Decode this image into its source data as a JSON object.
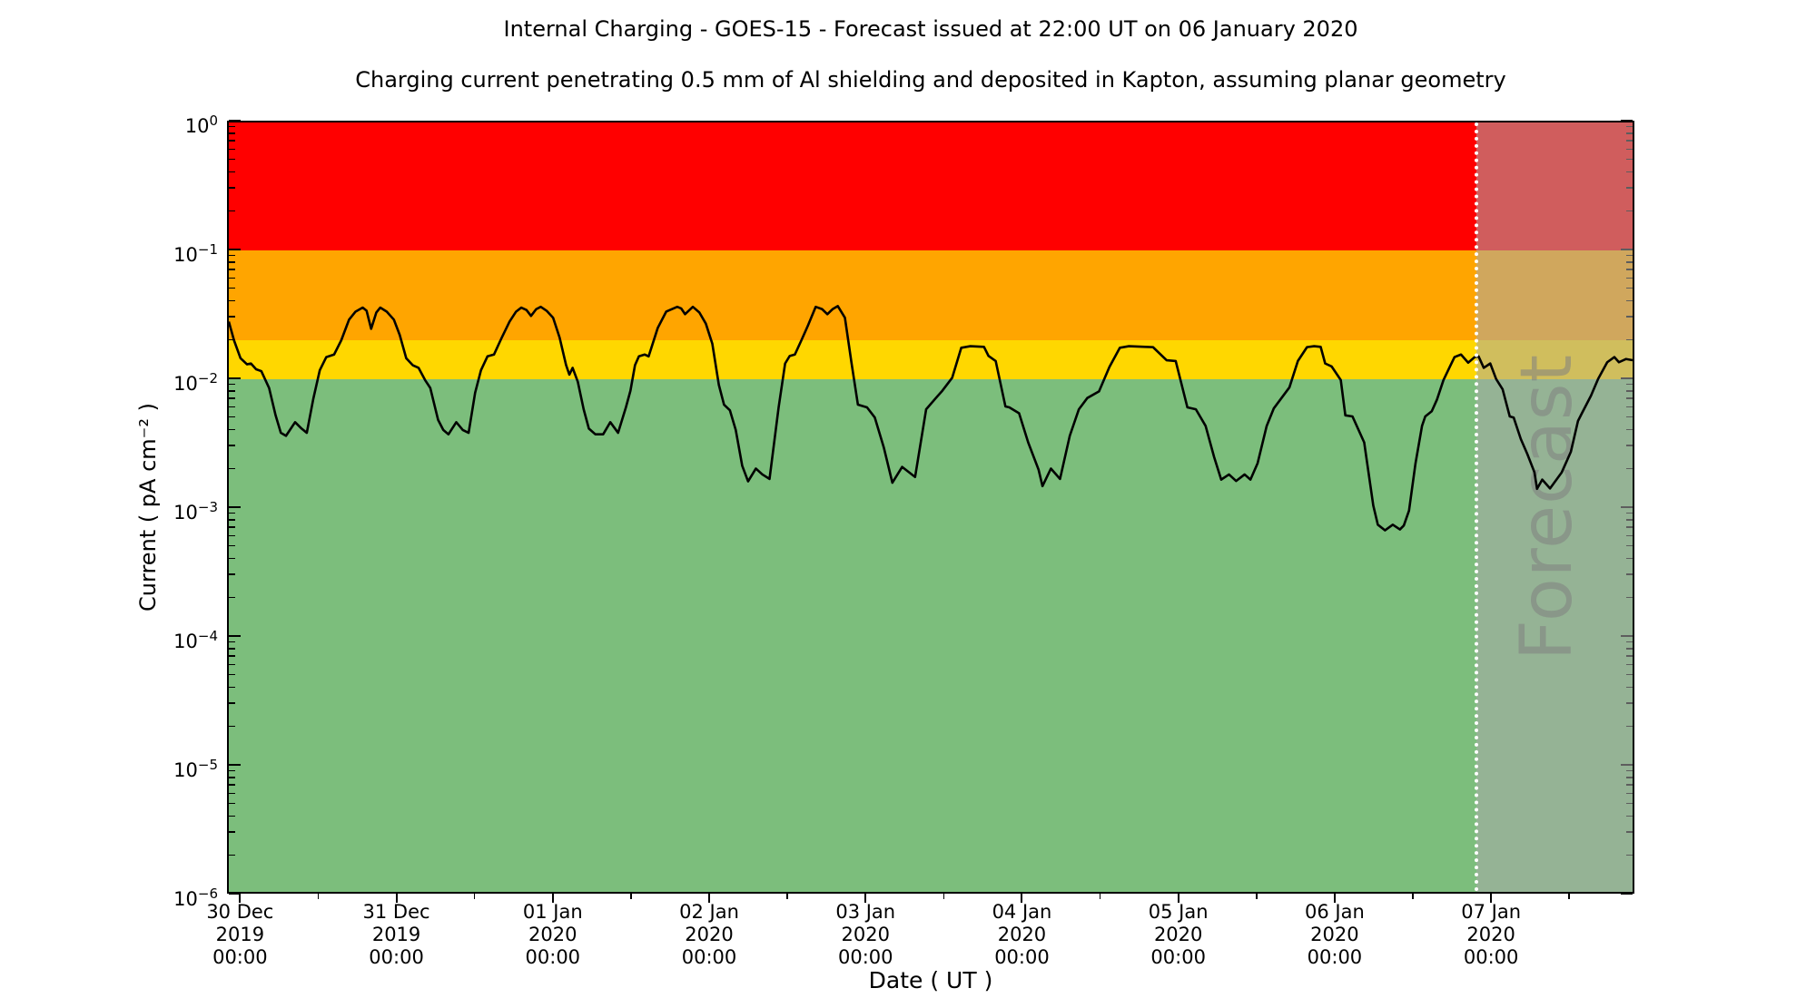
{
  "chart_data": {
    "type": "line",
    "title": "Internal Charging - GOES-15 - Forecast issued at 22:00 UT on 06 January 2020",
    "subtitle": "Charging current penetrating 0.5 mm of Al shielding and deposited in Kapton, assuming planar geometry",
    "xlabel": "Date ( UT )",
    "ylabel": "Current ( pA cm⁻² )",
    "y_scale": "log",
    "ylim": [
      1e-06,
      1
    ],
    "y_tick_exponents": [
      0,
      -1,
      -2,
      -3,
      -4,
      -5,
      -6
    ],
    "x_total_hours": 216,
    "x_major_ticks": [
      {
        "t": 2,
        "lines": [
          "30 Dec",
          "2019",
          "00:00"
        ]
      },
      {
        "t": 26,
        "lines": [
          "31 Dec",
          "2019",
          "00:00"
        ]
      },
      {
        "t": 50,
        "lines": [
          "01 Jan",
          "2020",
          "00:00"
        ]
      },
      {
        "t": 74,
        "lines": [
          "02 Jan",
          "2020",
          "00:00"
        ]
      },
      {
        "t": 98,
        "lines": [
          "03 Jan",
          "2020",
          "00:00"
        ]
      },
      {
        "t": 122,
        "lines": [
          "04 Jan",
          "2020",
          "00:00"
        ]
      },
      {
        "t": 146,
        "lines": [
          "05 Jan",
          "2020",
          "00:00"
        ]
      },
      {
        "t": 170,
        "lines": [
          "06 Jan",
          "2020",
          "00:00"
        ]
      },
      {
        "t": 194,
        "lines": [
          "07 Jan",
          "2020",
          "00:00"
        ]
      }
    ],
    "x_minor_ticks": [
      14,
      38,
      62,
      86,
      110,
      134,
      158,
      182,
      206
    ],
    "grid": false,
    "zones": [
      {
        "name": "red-zone",
        "color": "#ff0000",
        "from": 0.1,
        "to": 1.0
      },
      {
        "name": "orange-zone",
        "color": "#ffa500",
        "from": 0.02,
        "to": 0.1
      },
      {
        "name": "yellow-zone",
        "color": "#ffd700",
        "from": 0.01,
        "to": 0.02
      },
      {
        "name": "green-zone",
        "color": "#7cbe7c",
        "from": 1e-06,
        "to": 0.01
      }
    ],
    "forecast": {
      "watermark": "Forecast",
      "start_hours": 192,
      "overlay_color": "rgba(169,169,169,0.55)",
      "divider_color": "#ffffff",
      "watermark_color": "rgba(128,128,128,0.55)"
    },
    "series": [
      {
        "name": "charging-current",
        "color": "#000000",
        "points": [
          [
            0,
            0.028
          ],
          [
            0.8,
            0.02
          ],
          [
            1.8,
            0.0145
          ],
          [
            2.8,
            0.013
          ],
          [
            3.4,
            0.0132
          ],
          [
            4.2,
            0.0119
          ],
          [
            5,
            0.0115
          ],
          [
            6.2,
            0.0085
          ],
          [
            7.2,
            0.0052
          ],
          [
            8,
            0.0038
          ],
          [
            8.8,
            0.0036
          ],
          [
            10.2,
            0.0046
          ],
          [
            11.2,
            0.0041
          ],
          [
            12,
            0.0038
          ],
          [
            13,
            0.007
          ],
          [
            14,
            0.0117
          ],
          [
            15,
            0.0148
          ],
          [
            16.2,
            0.0155
          ],
          [
            17.3,
            0.02
          ],
          [
            18.5,
            0.029
          ],
          [
            19.5,
            0.0335
          ],
          [
            20.6,
            0.036
          ],
          [
            21.2,
            0.034
          ],
          [
            21.9,
            0.0246
          ],
          [
            22.7,
            0.033
          ],
          [
            23.3,
            0.036
          ],
          [
            24.3,
            0.0335
          ],
          [
            25.4,
            0.029
          ],
          [
            26.3,
            0.022
          ],
          [
            27.3,
            0.0145
          ],
          [
            28.3,
            0.0128
          ],
          [
            29.2,
            0.0122
          ],
          [
            30.2,
            0.0098
          ],
          [
            31,
            0.0085
          ],
          [
            32.2,
            0.0048
          ],
          [
            33,
            0.004
          ],
          [
            33.8,
            0.0037
          ],
          [
            35,
            0.0046
          ],
          [
            36,
            0.004
          ],
          [
            36.9,
            0.0038
          ],
          [
            37.9,
            0.0078
          ],
          [
            38.8,
            0.0117
          ],
          [
            39.8,
            0.015
          ],
          [
            40.8,
            0.0155
          ],
          [
            42,
            0.021
          ],
          [
            43.2,
            0.028
          ],
          [
            44.2,
            0.0335
          ],
          [
            45,
            0.036
          ],
          [
            45.8,
            0.0345
          ],
          [
            46.5,
            0.031
          ],
          [
            47.3,
            0.035
          ],
          [
            48,
            0.0365
          ],
          [
            48.9,
            0.034
          ],
          [
            49.9,
            0.03
          ],
          [
            50.9,
            0.021
          ],
          [
            51.9,
            0.0128
          ],
          [
            52.4,
            0.0108
          ],
          [
            52.9,
            0.0122
          ],
          [
            53.7,
            0.0095
          ],
          [
            54.6,
            0.0058
          ],
          [
            55.4,
            0.0041
          ],
          [
            56.4,
            0.0037
          ],
          [
            57.6,
            0.0037
          ],
          [
            58.7,
            0.0046
          ],
          [
            59.9,
            0.0038
          ],
          [
            61.1,
            0.006
          ],
          [
            61.8,
            0.0081
          ],
          [
            62.5,
            0.0128
          ],
          [
            63.1,
            0.015
          ],
          [
            64,
            0.0155
          ],
          [
            64.6,
            0.015
          ],
          [
            66,
            0.025
          ],
          [
            67.3,
            0.0335
          ],
          [
            69,
            0.0365
          ],
          [
            69.6,
            0.0355
          ],
          [
            70.2,
            0.032
          ],
          [
            71.4,
            0.0365
          ],
          [
            72.4,
            0.033
          ],
          [
            73.4,
            0.027
          ],
          [
            74.4,
            0.0188
          ],
          [
            75.4,
            0.009
          ],
          [
            76.2,
            0.0063
          ],
          [
            77.1,
            0.0057
          ],
          [
            78,
            0.004
          ],
          [
            79,
            0.0021
          ],
          [
            79.9,
            0.00159
          ],
          [
            81.1,
            0.002
          ],
          [
            82.1,
            0.0018
          ],
          [
            83.2,
            0.00166
          ],
          [
            84.6,
            0.006
          ],
          [
            85.6,
            0.0132
          ],
          [
            86.3,
            0.0151
          ],
          [
            87.1,
            0.0155
          ],
          [
            88.1,
            0.02
          ],
          [
            89.1,
            0.026
          ],
          [
            90.3,
            0.0365
          ],
          [
            91.3,
            0.035
          ],
          [
            92.1,
            0.032
          ],
          [
            92.9,
            0.035
          ],
          [
            93.7,
            0.037
          ],
          [
            94.8,
            0.03
          ],
          [
            95.8,
            0.0135
          ],
          [
            96.8,
            0.0063
          ],
          [
            98.2,
            0.006
          ],
          [
            99.4,
            0.005
          ],
          [
            100.8,
            0.0029
          ],
          [
            102.1,
            0.00155
          ],
          [
            103.6,
            0.00206
          ],
          [
            105.6,
            0.00172
          ],
          [
            107.3,
            0.0058
          ],
          [
            108.8,
            0.0071
          ],
          [
            109.8,
            0.0081
          ],
          [
            111.3,
            0.0102
          ],
          [
            112.7,
            0.0175
          ],
          [
            114.1,
            0.018
          ],
          [
            116.2,
            0.0178
          ],
          [
            116.9,
            0.0151
          ],
          [
            118,
            0.0138
          ],
          [
            119.5,
            0.0061
          ],
          [
            120.1,
            0.006
          ],
          [
            121.6,
            0.0054
          ],
          [
            123,
            0.0032
          ],
          [
            124.6,
            0.00196
          ],
          [
            125.2,
            0.00146
          ],
          [
            126.5,
            0.002
          ],
          [
            127.9,
            0.00166
          ],
          [
            129.4,
            0.0036
          ],
          [
            130.8,
            0.0058
          ],
          [
            132.1,
            0.0071
          ],
          [
            133.9,
            0.008
          ],
          [
            135.5,
            0.0124
          ],
          [
            137.1,
            0.0175
          ],
          [
            138.5,
            0.018
          ],
          [
            141,
            0.0178
          ],
          [
            142.2,
            0.0177
          ],
          [
            144.3,
            0.014
          ],
          [
            145.7,
            0.0138
          ],
          [
            147.5,
            0.006
          ],
          [
            148.8,
            0.0058
          ],
          [
            150.3,
            0.0043
          ],
          [
            151.6,
            0.00247
          ],
          [
            152.7,
            0.00164
          ],
          [
            153.9,
            0.0018
          ],
          [
            155,
            0.0016
          ],
          [
            156.3,
            0.0018
          ],
          [
            157.2,
            0.00164
          ],
          [
            158.3,
            0.0022
          ],
          [
            159.7,
            0.0043
          ],
          [
            160.8,
            0.0059
          ],
          [
            161.8,
            0.0069
          ],
          [
            163.2,
            0.0086
          ],
          [
            164.5,
            0.0138
          ],
          [
            165.9,
            0.0177
          ],
          [
            167,
            0.018
          ],
          [
            168,
            0.0178
          ],
          [
            168.7,
            0.0132
          ],
          [
            169.7,
            0.0125
          ],
          [
            171.1,
            0.0098
          ],
          [
            171.8,
            0.0052
          ],
          [
            172.9,
            0.0051
          ],
          [
            173.3,
            0.0046
          ],
          [
            174.7,
            0.0032
          ],
          [
            176.1,
            0.00103
          ],
          [
            176.8,
            0.00073
          ],
          [
            177.9,
            0.00066
          ],
          [
            179.1,
            0.00073
          ],
          [
            180.2,
            0.00067
          ],
          [
            180.8,
            0.00072
          ],
          [
            181.6,
            0.00094
          ],
          [
            182.6,
            0.0022
          ],
          [
            183.6,
            0.0043
          ],
          [
            184.1,
            0.0051
          ],
          [
            185.1,
            0.0056
          ],
          [
            185.9,
            0.0069
          ],
          [
            186.9,
            0.0098
          ],
          [
            187.9,
            0.0125
          ],
          [
            188.6,
            0.0148
          ],
          [
            189.6,
            0.0155
          ],
          [
            190.7,
            0.0134
          ],
          [
            191.7,
            0.0148
          ],
          [
            192.3,
            0.015
          ],
          [
            193.1,
            0.0122
          ],
          [
            194.1,
            0.0132
          ],
          [
            195,
            0.01
          ],
          [
            196,
            0.0083
          ],
          [
            197.1,
            0.0051
          ],
          [
            197.7,
            0.005
          ],
          [
            198.8,
            0.0034
          ],
          [
            199.8,
            0.0026
          ],
          [
            200.9,
            0.00187
          ],
          [
            201.3,
            0.00139
          ],
          [
            202.1,
            0.00164
          ],
          [
            203.3,
            0.0014
          ],
          [
            205.1,
            0.00187
          ],
          [
            206.5,
            0.0027
          ],
          [
            207.6,
            0.0047
          ],
          [
            208.2,
            0.0054
          ],
          [
            209.6,
            0.0074
          ],
          [
            210.7,
            0.01
          ],
          [
            212.1,
            0.0135
          ],
          [
            213.2,
            0.0148
          ],
          [
            213.9,
            0.0135
          ],
          [
            215,
            0.0143
          ],
          [
            216,
            0.014
          ]
        ]
      }
    ]
  }
}
